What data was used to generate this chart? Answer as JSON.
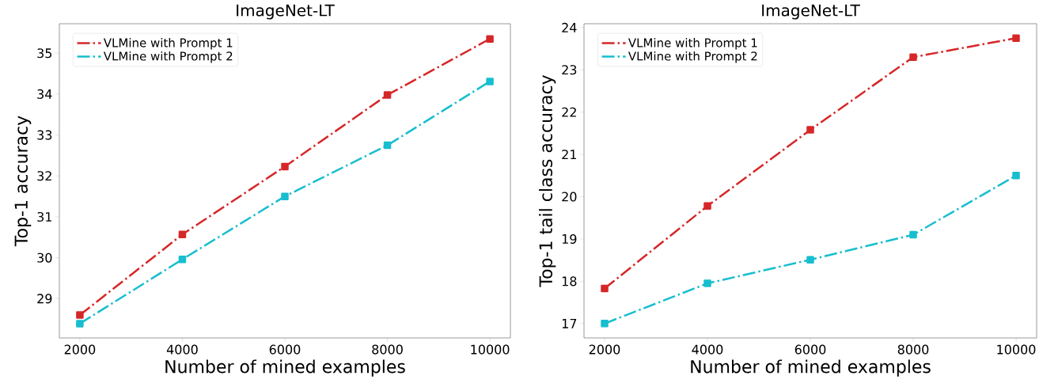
{
  "chart_data": [
    {
      "type": "line",
      "title": "ImageNet-LT",
      "xlabel": "Number of mined examples",
      "ylabel": "Top-1 accuracy",
      "x": [
        2000,
        4000,
        6000,
        8000,
        10000
      ],
      "series": [
        {
          "name": "VLMine with Prompt 1",
          "color": "#d62728",
          "values": [
            28.6,
            30.57,
            32.23,
            33.98,
            35.35
          ]
        },
        {
          "name": "VLMine with Prompt 2",
          "color": "#17becf",
          "values": [
            28.39,
            29.96,
            31.5,
            32.75,
            34.31
          ]
        }
      ],
      "xlim": [
        1600,
        10400
      ],
      "ylim": [
        28.04,
        35.72
      ],
      "xticks": [
        2000,
        4000,
        6000,
        8000,
        10000
      ],
      "yticks": [
        29,
        30,
        31,
        32,
        33,
        34,
        35
      ],
      "legend": "top left",
      "grid": false,
      "marker": "square",
      "line_style": "dashdot"
    },
    {
      "type": "line",
      "title": "ImageNet-LT",
      "xlabel": "Number of mined examples",
      "ylabel": "Top-1 tail class accuracy",
      "x": [
        2000,
        4000,
        6000,
        8000,
        10000
      ],
      "series": [
        {
          "name": "VLMine with Prompt 1",
          "color": "#d62728",
          "values": [
            17.83,
            19.78,
            21.58,
            23.3,
            23.75
          ]
        },
        {
          "name": "VLMine with Prompt 2",
          "color": "#17becf",
          "values": [
            17.0,
            17.95,
            18.51,
            19.1,
            20.5
          ]
        }
      ],
      "xlim": [
        1600,
        10400
      ],
      "ylim": [
        16.66,
        24.09
      ],
      "xticks": [
        2000,
        4000,
        6000,
        8000,
        10000
      ],
      "yticks": [
        17,
        18,
        19,
        20,
        21,
        22,
        23,
        24
      ],
      "legend": "top left",
      "grid": false,
      "marker": "square",
      "line_style": "dashdot"
    }
  ]
}
